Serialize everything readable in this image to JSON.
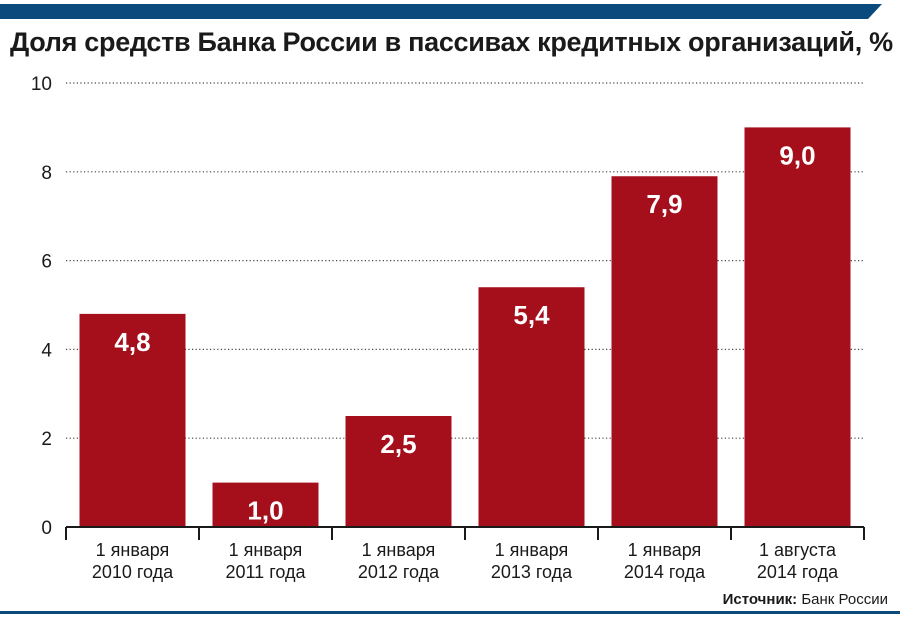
{
  "header": {
    "band_color": "#0b4a7d"
  },
  "chart_data": {
    "type": "bar",
    "title": "Доля средств Банка России в пассивах кредитных организаций, %",
    "xlabel": "",
    "ylabel": "",
    "ylim": [
      0,
      10
    ],
    "yticks": [
      0,
      2,
      4,
      6,
      8,
      10
    ],
    "ytick_labels": [
      "0",
      "2",
      "4",
      "6",
      "8",
      "10"
    ],
    "grid": true,
    "categories": [
      [
        "1 января",
        "2010 года"
      ],
      [
        "1 января",
        "2011 года"
      ],
      [
        "1 января",
        "2012 года"
      ],
      [
        "1 января",
        "2013 года"
      ],
      [
        "1 января",
        "2014 года"
      ],
      [
        "1 августа",
        "2014 года"
      ]
    ],
    "values": [
      4.8,
      1.0,
      2.5,
      5.4,
      7.9,
      9.0
    ],
    "data_labels": [
      "4,8",
      "1,0",
      "2,5",
      "5,4",
      "7,9",
      "9,0"
    ],
    "bar_color": "#a50f1c",
    "label_color": "#ffffff"
  },
  "footer": {
    "source_label": "Источник:",
    "source_text": " Банк России",
    "rule_color": "#0b4a7d"
  }
}
